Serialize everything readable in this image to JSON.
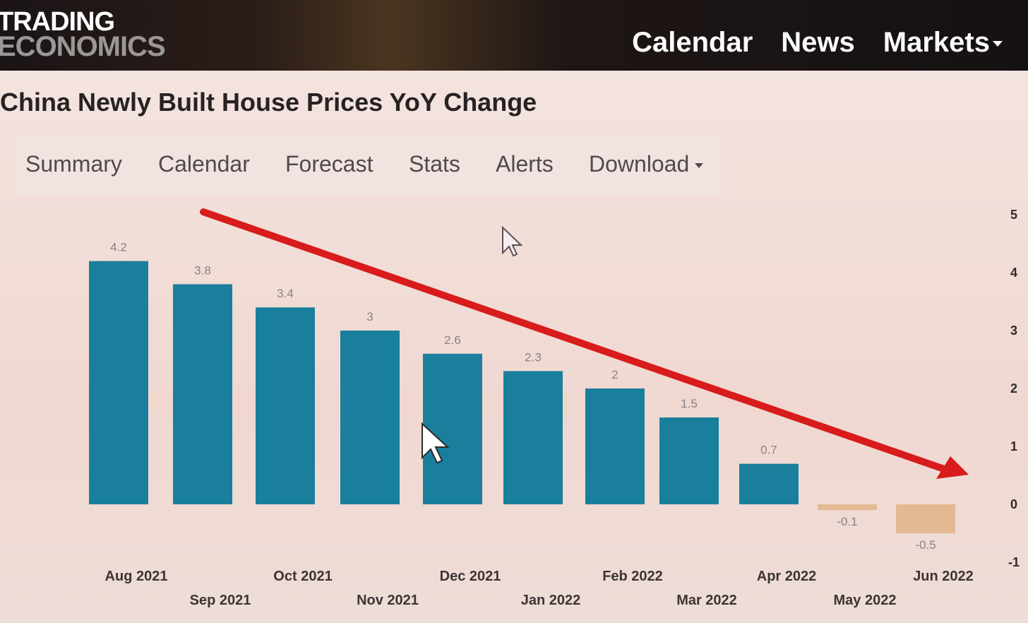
{
  "brand": {
    "line1": "TRADING",
    "line2": "ECONOMICS"
  },
  "nav": {
    "calendar": "Calendar",
    "news": "News",
    "markets": "Markets"
  },
  "page": {
    "title": "China Newly Built House Prices YoY Change"
  },
  "tabs": [
    {
      "label": "Summary"
    },
    {
      "label": "Calendar"
    },
    {
      "label": "Forecast"
    },
    {
      "label": "Stats"
    },
    {
      "label": "Alerts"
    },
    {
      "label": "Download"
    }
  ],
  "colors": {
    "positive": "#1a7f9c",
    "negative": "#e3b992",
    "arrow": "#d81b1b"
  },
  "chart_data": {
    "type": "bar",
    "categories": [
      "Aug 2021",
      "Sep 2021",
      "Oct 2021",
      "Nov 2021",
      "Dec 2021",
      "Jan 2022",
      "Feb 2022",
      "Mar 2022",
      "Apr 2022",
      "May 2022",
      "Jun 2022"
    ],
    "values": [
      4.2,
      3.8,
      3.4,
      3,
      2.6,
      2.3,
      2,
      1.5,
      0.7,
      -0.1,
      -0.5
    ],
    "value_labels": [
      "4.2",
      "3.8",
      "3.4",
      "3",
      "2.6",
      "2.3",
      "2",
      "1.5",
      "0.7",
      "-0.1",
      "-0.5"
    ],
    "yticks": [
      5,
      4,
      3,
      2,
      1,
      0,
      -1
    ],
    "ylim": [
      -1,
      5
    ],
    "axis_position": "right",
    "annotation": "red downward trend arrow"
  }
}
